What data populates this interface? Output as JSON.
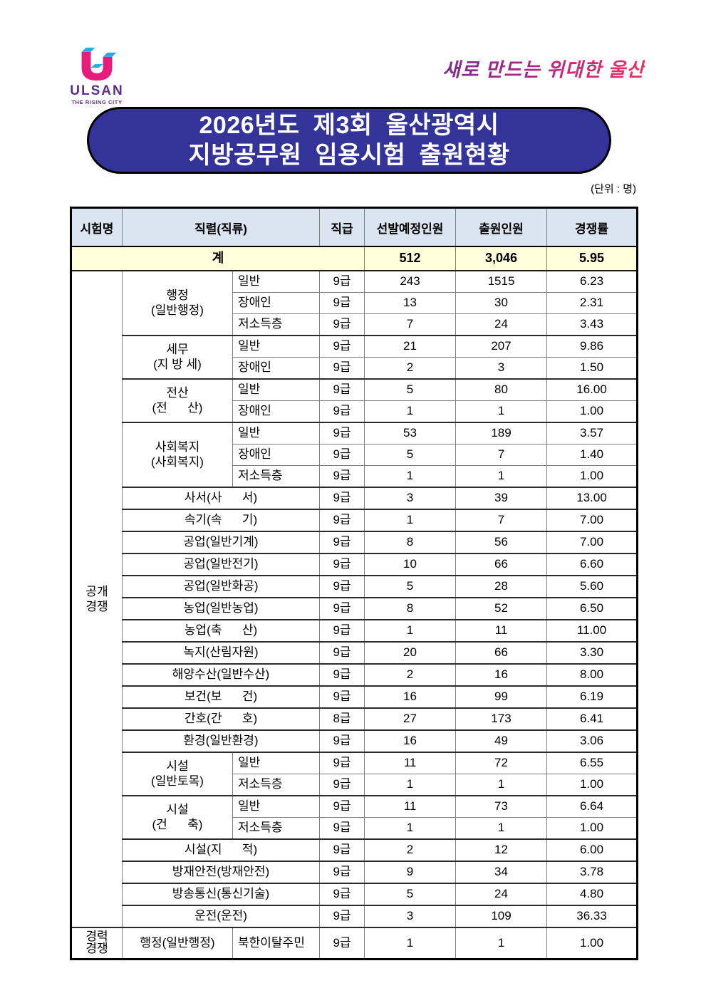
{
  "brand": {
    "logo_text": "ULSAN",
    "logo_tagline": "THE RISING CITY",
    "slogan": "새로 만드는 위대한 울산"
  },
  "title": {
    "line1": "2026년도 제3회 울산광역시",
    "line2": "지방공무원 임용시험 출원현황"
  },
  "unit_note": "(단위 : 명)",
  "colors": {
    "banner_bg": "#333399",
    "banner_text": "#ffffff",
    "header_row_bg": "#dbe5f1",
    "total_row_bg": "#ffffdc",
    "logo_pink": "#e81c7c",
    "logo_blue": "#2aabe2",
    "logo_purple": "#5b2d90",
    "slogan_gradient_start": "#7b2e8f",
    "slogan_gradient_end": "#e8355f"
  },
  "table": {
    "headers": {
      "exam": "시험명",
      "serial": "직렬(직류)",
      "grade": "직급",
      "planned": "선발예정인원",
      "applied": "출원인원",
      "ratio": "경쟁률"
    },
    "total": {
      "label": "계",
      "planned": "512",
      "applied": "3,046",
      "ratio": "5.95"
    },
    "sections": [
      {
        "name": [
          "공개",
          "경쟁"
        ],
        "rows": [
          {
            "serial": [
              "행정",
              "(일반행정)"
            ],
            "serial_span": 3,
            "sub": "일반",
            "grade": "9급",
            "planned": "243",
            "applied": "1515",
            "ratio": "6.23",
            "group_start": true
          },
          {
            "sub": "장애인",
            "grade": "9급",
            "planned": "13",
            "applied": "30",
            "ratio": "2.31"
          },
          {
            "sub": "저소득층",
            "grade": "9급",
            "planned": "7",
            "applied": "24",
            "ratio": "3.43"
          },
          {
            "serial": [
              "세무",
              "(지 방 세)"
            ],
            "serial_span": 2,
            "sub": "일반",
            "grade": "9급",
            "planned": "21",
            "applied": "207",
            "ratio": "9.86",
            "group_start": true
          },
          {
            "sub": "장애인",
            "grade": "9급",
            "planned": "2",
            "applied": "3",
            "ratio": "1.50"
          },
          {
            "serial": [
              "전산",
              "(전      산)"
            ],
            "serial_span": 2,
            "sub": "일반",
            "grade": "9급",
            "planned": "5",
            "applied": "80",
            "ratio": "16.00",
            "group_start": true
          },
          {
            "sub": "장애인",
            "grade": "9급",
            "planned": "1",
            "applied": "1",
            "ratio": "1.00"
          },
          {
            "serial": [
              "사회복지",
              "(사회복지)"
            ],
            "serial_span": 3,
            "sub": "일반",
            "grade": "9급",
            "planned": "53",
            "applied": "189",
            "ratio": "3.57",
            "group_start": true
          },
          {
            "sub": "장애인",
            "grade": "9급",
            "planned": "5",
            "applied": "7",
            "ratio": "1.40"
          },
          {
            "sub": "저소득층",
            "grade": "9급",
            "planned": "1",
            "applied": "1",
            "ratio": "1.00"
          },
          {
            "serial": [
              "사서(사      서)"
            ],
            "grade": "9급",
            "planned": "3",
            "applied": "39",
            "ratio": "13.00",
            "group_start": true
          },
          {
            "serial": [
              "속기(속      기)"
            ],
            "grade": "9급",
            "planned": "1",
            "applied": "7",
            "ratio": "7.00",
            "group_start": true
          },
          {
            "serial": [
              "공업(일반기계)"
            ],
            "grade": "9급",
            "planned": "8",
            "applied": "56",
            "ratio": "7.00",
            "group_start": true
          },
          {
            "serial": [
              "공업(일반전기)"
            ],
            "grade": "9급",
            "planned": "10",
            "applied": "66",
            "ratio": "6.60",
            "group_start": true
          },
          {
            "serial": [
              "공업(일반화공)"
            ],
            "grade": "9급",
            "planned": "5",
            "applied": "28",
            "ratio": "5.60",
            "group_start": true
          },
          {
            "serial": [
              "농업(일반농업)"
            ],
            "grade": "9급",
            "planned": "8",
            "applied": "52",
            "ratio": "6.50",
            "group_start": true
          },
          {
            "serial": [
              "농업(축      산)"
            ],
            "grade": "9급",
            "planned": "1",
            "applied": "11",
            "ratio": "11.00",
            "group_start": true
          },
          {
            "serial": [
              "녹지(산림자원)"
            ],
            "grade": "9급",
            "planned": "20",
            "applied": "66",
            "ratio": "3.30",
            "group_start": true
          },
          {
            "serial": [
              "해양수산(일반수산)"
            ],
            "grade": "9급",
            "planned": "2",
            "applied": "16",
            "ratio": "8.00",
            "group_start": true
          },
          {
            "serial": [
              "보건(보      건)"
            ],
            "grade": "9급",
            "planned": "16",
            "applied": "99",
            "ratio": "6.19",
            "group_start": true
          },
          {
            "serial": [
              "간호(간      호)"
            ],
            "grade": "8급",
            "planned": "27",
            "applied": "173",
            "ratio": "6.41",
            "group_start": true
          },
          {
            "serial": [
              "환경(일반환경)"
            ],
            "grade": "9급",
            "planned": "16",
            "applied": "49",
            "ratio": "3.06",
            "group_start": true
          },
          {
            "serial": [
              "시설",
              "(일반토목)"
            ],
            "serial_span": 2,
            "sub": "일반",
            "grade": "9급",
            "planned": "11",
            "applied": "72",
            "ratio": "6.55",
            "group_start": true
          },
          {
            "sub": "저소득층",
            "grade": "9급",
            "planned": "1",
            "applied": "1",
            "ratio": "1.00"
          },
          {
            "serial": [
              "시설",
              "(건      축)"
            ],
            "serial_span": 2,
            "sub": "일반",
            "grade": "9급",
            "planned": "11",
            "applied": "73",
            "ratio": "6.64",
            "group_start": true
          },
          {
            "sub": "저소득층",
            "grade": "9급",
            "planned": "1",
            "applied": "1",
            "ratio": "1.00"
          },
          {
            "serial": [
              "시설(지      적)"
            ],
            "grade": "9급",
            "planned": "2",
            "applied": "12",
            "ratio": "6.00",
            "group_start": true
          },
          {
            "serial": [
              "방재안전(방재안전)"
            ],
            "grade": "9급",
            "planned": "9",
            "applied": "34",
            "ratio": "3.78",
            "group_start": true
          },
          {
            "serial": [
              "방송통신(통신기술)"
            ],
            "grade": "9급",
            "planned": "5",
            "applied": "24",
            "ratio": "4.80",
            "group_start": true
          },
          {
            "serial": [
              "운전(운전)"
            ],
            "grade": "9급",
            "planned": "3",
            "applied": "109",
            "ratio": "36.33",
            "group_start": true
          }
        ]
      },
      {
        "name": [
          "경력",
          "경쟁"
        ],
        "rows": [
          {
            "serial": [
              "행정(일반행정)"
            ],
            "sub": "북한이탈주민",
            "grade": "9급",
            "planned": "1",
            "applied": "1",
            "ratio": "1.00",
            "group_start": true
          }
        ]
      }
    ]
  }
}
